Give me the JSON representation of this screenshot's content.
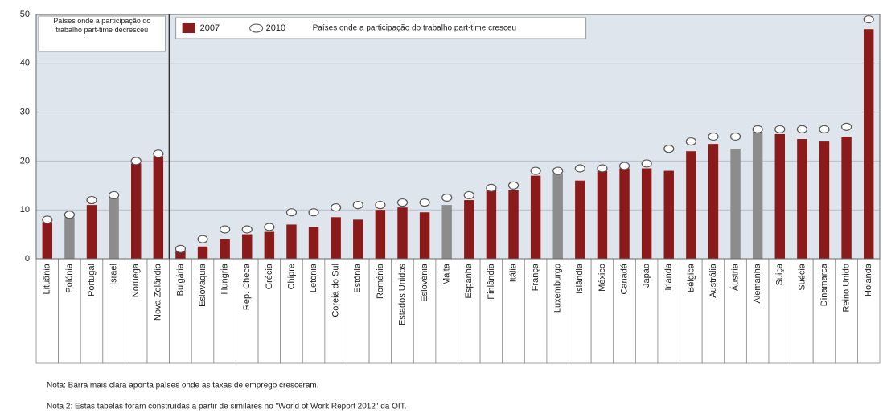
{
  "chart_data": {
    "type": "bar",
    "categories": [
      "Lituânia",
      "Polónia",
      "Portugal",
      "Israel",
      "Noruega",
      "Nova Zelândia",
      "Bulgária",
      "Eslováquia",
      "Hungria",
      "Rep. Checa",
      "Grécia",
      "Chipre",
      "Letónia",
      "Coreia do Sul",
      "Estónia",
      "Roménia",
      "Estados Unidos",
      "Eslovénia",
      "Malta",
      "Espanha",
      "Finlândia",
      "Itália",
      "França",
      "Luxemburgo",
      "Islândia",
      "México",
      "Canadá",
      "Japão",
      "Irlanda",
      "Bélgica",
      "Austrália",
      "Áustria",
      "Alemanha",
      "Suiça",
      "Suécia",
      "Dinamarca",
      "Reino Unido",
      "Holanda"
    ],
    "series": [
      {
        "name": "2007",
        "color": "#8b1a1a",
        "point_colors": [
          "#8b1a1a",
          "#8c8c8c",
          "#8b1a1a",
          "#8c8c8c",
          "#8b1a1a",
          "#8b1a1a",
          "#8b1a1a",
          "#8b1a1a",
          "#8b1a1a",
          "#8b1a1a",
          "#8b1a1a",
          "#8b1a1a",
          "#8b1a1a",
          "#8b1a1a",
          "#8b1a1a",
          "#8b1a1a",
          "#8b1a1a",
          "#8b1a1a",
          "#8c8c8c",
          "#8b1a1a",
          "#8b1a1a",
          "#8b1a1a",
          "#8b1a1a",
          "#8c8c8c",
          "#8b1a1a",
          "#8b1a1a",
          "#8b1a1a",
          "#8b1a1a",
          "#8b1a1a",
          "#8b1a1a",
          "#8b1a1a",
          "#8c8c8c",
          "#8c8c8c",
          "#8b1a1a",
          "#8b1a1a",
          "#8b1a1a",
          "#8b1a1a",
          "#8b1a1a"
        ],
        "values": [
          7.5,
          8.5,
          11,
          12.5,
          19.5,
          21,
          1.5,
          2.5,
          4,
          5,
          5.5,
          7,
          6.5,
          8.5,
          8,
          10,
          10.5,
          9.5,
          11,
          12,
          14,
          14,
          17,
          17.5,
          16,
          18,
          18.5,
          18.5,
          18,
          22,
          23.5,
          22.5,
          26,
          25.5,
          24.5,
          24,
          25,
          47
        ]
      },
      {
        "name": "2010",
        "color": "#ffffff",
        "values": [
          8,
          9,
          12,
          13,
          20,
          21.5,
          2,
          4,
          6,
          6,
          6.5,
          9.5,
          9.5,
          10.5,
          11,
          11,
          11.5,
          11.5,
          12.5,
          13,
          14.5,
          15,
          18,
          18,
          18.5,
          18.5,
          19,
          19.5,
          22.5,
          24,
          25,
          25,
          26.5,
          26.5,
          26.5,
          26.5,
          27,
          49
        ]
      }
    ],
    "ylim": [
      0,
      50
    ],
    "yticks": [
      0,
      10,
      20,
      30,
      40,
      50
    ],
    "grid": true,
    "annotations": [
      "Países onde a participação do trabalho part-time decresceu",
      "Países onde a participação do trabalho part-time cresceu"
    ],
    "notes": [
      "Nota: Barra mais clara aponta países onde as taxas de emprego cresceram.",
      "Nota 2: Estas tabelas foram construídas a partir de similares no \"World of Work Report 2012\" da OIT."
    ]
  }
}
